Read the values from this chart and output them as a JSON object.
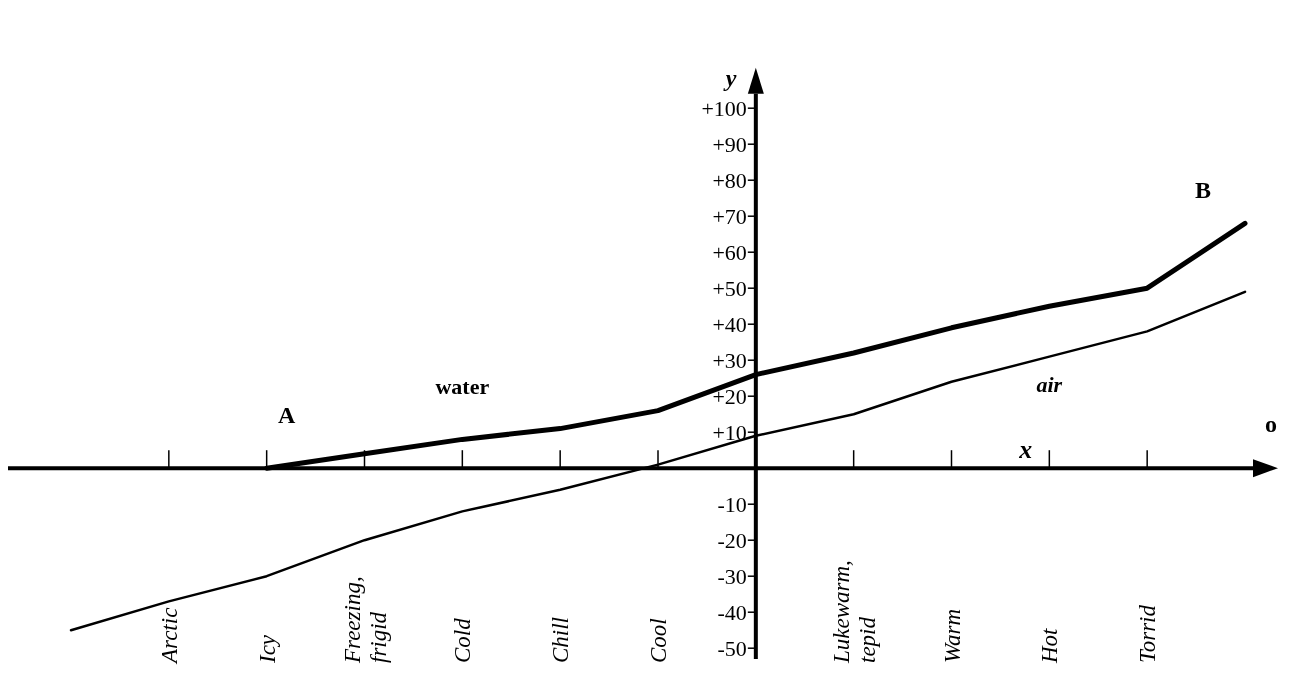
{
  "chart_data": {
    "type": "line",
    "xlabel": "x",
    "ylabel": "y",
    "categories": [
      null,
      "Arctic",
      "Icy",
      "Freezing,\nfrigid",
      "Cold",
      "Chill",
      "Cool",
      null,
      "Lukewarm,\ntepid",
      "Warm",
      "Hot",
      "Torrid",
      null
    ],
    "series": [
      {
        "name": "water",
        "color": "#000000",
        "values": [
          null,
          null,
          0,
          4,
          8,
          11,
          16,
          26,
          32,
          39,
          45,
          50,
          68
        ]
      },
      {
        "name": "air",
        "color": "#000000",
        "values": [
          -45,
          -37,
          -30,
          -20,
          -12,
          -6,
          1,
          9,
          15,
          24,
          31,
          38,
          49
        ]
      }
    ],
    "ylim": [
      -53,
      104
    ],
    "yticks": [
      {
        "value": 100,
        "label": "+100"
      },
      {
        "value": 90,
        "label": "+90"
      },
      {
        "value": 80,
        "label": "+80"
      },
      {
        "value": 70,
        "label": "+70"
      },
      {
        "value": 60,
        "label": "+60"
      },
      {
        "value": 50,
        "label": "+50"
      },
      {
        "value": 40,
        "label": "+40"
      },
      {
        "value": 30,
        "label": "+30"
      },
      {
        "value": 20,
        "label": "+20"
      },
      {
        "value": 10,
        "label": "+10"
      },
      -10,
      -20,
      -30,
      -40,
      -50
    ],
    "annotations": [
      {
        "text": "A",
        "x": "Icy",
        "y": 0
      },
      "B",
      "o"
    ]
  }
}
